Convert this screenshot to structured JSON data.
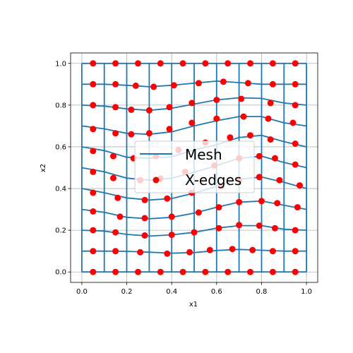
{
  "chart_data": {
    "type": "scatter",
    "title": "",
    "xlabel": "x1",
    "ylabel": "x2",
    "xlim": [
      -0.05,
      1.05
    ],
    "ylim": [
      -0.05,
      1.05
    ],
    "xticks": [
      "0.0",
      "0.2",
      "0.4",
      "0.6",
      "0.8",
      "1.0"
    ],
    "yticks": [
      "0.0",
      "0.2",
      "0.4",
      "0.6",
      "0.8",
      "1.0"
    ],
    "grid": true,
    "legend": {
      "location": "center",
      "entries": [
        "Mesh",
        "X-edges"
      ]
    },
    "colors": {
      "mesh": "#1f77b4",
      "edges": "#ff0000",
      "grid": "#b0b0b0"
    },
    "series": [
      {
        "name": "Mesh",
        "kind": "lines",
        "rows": [
          [
            [
              0.0,
              0.0
            ],
            [
              0.1,
              0.0
            ],
            [
              0.2,
              0.0
            ],
            [
              0.3,
              0.0
            ],
            [
              0.4,
              0.0
            ],
            [
              0.5,
              0.0
            ],
            [
              0.6,
              0.0
            ],
            [
              0.7,
              0.0
            ],
            [
              0.8,
              0.0
            ],
            [
              0.9,
              0.0
            ],
            [
              1.0,
              0.0
            ]
          ],
          [
            [
              0.0,
              0.1
            ],
            [
              0.1,
              0.1
            ],
            [
              0.2,
              0.099
            ],
            [
              0.3,
              0.095
            ],
            [
              0.4,
              0.09
            ],
            [
              0.5,
              0.093
            ],
            [
              0.6,
              0.103
            ],
            [
              0.7,
              0.108
            ],
            [
              0.8,
              0.104
            ],
            [
              0.9,
              0.1
            ],
            [
              1.0,
              0.1
            ]
          ],
          [
            [
              0.0,
              0.2
            ],
            [
              0.1,
              0.196
            ],
            [
              0.2,
              0.18
            ],
            [
              0.3,
              0.172
            ],
            [
              0.4,
              0.178
            ],
            [
              0.5,
              0.19
            ],
            [
              0.6,
              0.21
            ],
            [
              0.7,
              0.222
            ],
            [
              0.8,
              0.222
            ],
            [
              0.9,
              0.205
            ],
            [
              1.0,
              0.2
            ]
          ],
          [
            [
              0.0,
              0.3
            ],
            [
              0.1,
              0.286
            ],
            [
              0.2,
              0.262
            ],
            [
              0.3,
              0.255
            ],
            [
              0.4,
              0.262
            ],
            [
              0.5,
              0.282
            ],
            [
              0.6,
              0.31
            ],
            [
              0.7,
              0.335
            ],
            [
              0.8,
              0.34
            ],
            [
              0.9,
              0.32
            ],
            [
              1.0,
              0.3
            ]
          ],
          [
            [
              0.0,
              0.4
            ],
            [
              0.1,
              0.38
            ],
            [
              0.2,
              0.355
            ],
            [
              0.3,
              0.345
            ],
            [
              0.4,
              0.352
            ],
            [
              0.5,
              0.378
            ],
            [
              0.6,
              0.41
            ],
            [
              0.7,
              0.445
            ],
            [
              0.8,
              0.455
            ],
            [
              0.9,
              0.43
            ],
            [
              1.0,
              0.4
            ]
          ],
          [
            [
              0.0,
              0.5
            ],
            [
              0.1,
              0.48
            ],
            [
              0.2,
              0.45
            ],
            [
              0.3,
              0.44
            ],
            [
              0.4,
              0.45
            ],
            [
              0.5,
              0.478
            ],
            [
              0.6,
              0.51
            ],
            [
              0.7,
              0.545
            ],
            [
              0.8,
              0.555
            ],
            [
              0.9,
              0.525
            ],
            [
              1.0,
              0.5
            ]
          ],
          [
            [
              0.0,
              0.6
            ],
            [
              0.1,
              0.582
            ],
            [
              0.2,
              0.55
            ],
            [
              0.3,
              0.545
            ],
            [
              0.4,
              0.552
            ],
            [
              0.5,
              0.585
            ],
            [
              0.6,
              0.61
            ],
            [
              0.7,
              0.645
            ],
            [
              0.8,
              0.655
            ],
            [
              0.9,
              0.625
            ],
            [
              1.0,
              0.6
            ]
          ],
          [
            [
              0.0,
              0.7
            ],
            [
              0.1,
              0.686
            ],
            [
              0.2,
              0.665
            ],
            [
              0.3,
              0.66
            ],
            [
              0.4,
              0.672
            ],
            [
              0.5,
              0.7
            ],
            [
              0.6,
              0.725
            ],
            [
              0.7,
              0.745
            ],
            [
              0.8,
              0.745
            ],
            [
              0.9,
              0.715
            ],
            [
              1.0,
              0.7
            ]
          ],
          [
            [
              0.0,
              0.8
            ],
            [
              0.1,
              0.795
            ],
            [
              0.2,
              0.782
            ],
            [
              0.3,
              0.775
            ],
            [
              0.4,
              0.785
            ],
            [
              0.5,
              0.805
            ],
            [
              0.6,
              0.825
            ],
            [
              0.7,
              0.835
            ],
            [
              0.8,
              0.832
            ],
            [
              0.9,
              0.81
            ],
            [
              1.0,
              0.8
            ]
          ],
          [
            [
              0.0,
              0.9
            ],
            [
              0.1,
              0.9
            ],
            [
              0.2,
              0.895
            ],
            [
              0.3,
              0.888
            ],
            [
              0.4,
              0.895
            ],
            [
              0.5,
              0.905
            ],
            [
              0.6,
              0.915
            ],
            [
              0.7,
              0.908
            ],
            [
              0.8,
              0.9
            ],
            [
              0.9,
              0.9
            ],
            [
              1.0,
              0.9
            ]
          ],
          [
            [
              0.0,
              1.0
            ],
            [
              0.1,
              1.0
            ],
            [
              0.2,
              1.0
            ],
            [
              0.3,
              1.0
            ],
            [
              0.4,
              1.0
            ],
            [
              0.5,
              1.0
            ],
            [
              0.6,
              1.0
            ],
            [
              0.7,
              1.0
            ],
            [
              0.8,
              1.0
            ],
            [
              0.9,
              1.0
            ],
            [
              1.0,
              1.0
            ]
          ]
        ]
      },
      {
        "name": "X-edges",
        "kind": "points",
        "points": [
          [
            0.05,
            0.0
          ],
          [
            0.15,
            0.0
          ],
          [
            0.25,
            0.0
          ],
          [
            0.35,
            0.0
          ],
          [
            0.45,
            0.0
          ],
          [
            0.55,
            0.0
          ],
          [
            0.65,
            0.0
          ],
          [
            0.75,
            0.0
          ],
          [
            0.85,
            0.0
          ],
          [
            0.95,
            0.0
          ],
          [
            0.05,
            0.1
          ],
          [
            0.15,
            0.1
          ],
          [
            0.26,
            0.095
          ],
          [
            0.38,
            0.088
          ],
          [
            0.48,
            0.095
          ],
          [
            0.57,
            0.105
          ],
          [
            0.67,
            0.11
          ],
          [
            0.76,
            0.105
          ],
          [
            0.85,
            0.1
          ],
          [
            0.95,
            0.1
          ],
          [
            0.05,
            0.2
          ],
          [
            0.15,
            0.19
          ],
          [
            0.28,
            0.175
          ],
          [
            0.4,
            0.178
          ],
          [
            0.5,
            0.19
          ],
          [
            0.61,
            0.21
          ],
          [
            0.7,
            0.225
          ],
          [
            0.79,
            0.222
          ],
          [
            0.86,
            0.21
          ],
          [
            0.95,
            0.2
          ],
          [
            0.05,
            0.29
          ],
          [
            0.17,
            0.265
          ],
          [
            0.28,
            0.258
          ],
          [
            0.4,
            0.265
          ],
          [
            0.52,
            0.285
          ],
          [
            0.61,
            0.31
          ],
          [
            0.7,
            0.335
          ],
          [
            0.8,
            0.34
          ],
          [
            0.87,
            0.33
          ],
          [
            0.96,
            0.31
          ],
          [
            0.05,
            0.38
          ],
          [
            0.16,
            0.355
          ],
          [
            0.28,
            0.345
          ],
          [
            0.38,
            0.352
          ],
          [
            0.49,
            0.38
          ],
          [
            0.62,
            0.41
          ],
          [
            0.7,
            0.44
          ],
          [
            0.79,
            0.455
          ],
          [
            0.88,
            0.44
          ],
          [
            0.97,
            0.415
          ],
          [
            0.05,
            0.48
          ],
          [
            0.14,
            0.45
          ],
          [
            0.26,
            0.44
          ],
          [
            0.35,
            0.448
          ],
          [
            0.46,
            0.48
          ],
          [
            0.59,
            0.51
          ],
          [
            0.7,
            0.545
          ],
          [
            0.79,
            0.555
          ],
          [
            0.86,
            0.545
          ],
          [
            0.95,
            0.515
          ],
          [
            0.05,
            0.58
          ],
          [
            0.14,
            0.555
          ],
          [
            0.23,
            0.545
          ],
          [
            0.33,
            0.555
          ],
          [
            0.43,
            0.585
          ],
          [
            0.55,
            0.62
          ],
          [
            0.66,
            0.645
          ],
          [
            0.75,
            0.655
          ],
          [
            0.84,
            0.635
          ],
          [
            0.95,
            0.615
          ],
          [
            0.05,
            0.685
          ],
          [
            0.15,
            0.665
          ],
          [
            0.22,
            0.66
          ],
          [
            0.3,
            0.665
          ],
          [
            0.39,
            0.685
          ],
          [
            0.49,
            0.715
          ],
          [
            0.6,
            0.735
          ],
          [
            0.72,
            0.745
          ],
          [
            0.83,
            0.735
          ],
          [
            0.94,
            0.715
          ],
          [
            0.05,
            0.8
          ],
          [
            0.15,
            0.79
          ],
          [
            0.22,
            0.778
          ],
          [
            0.3,
            0.775
          ],
          [
            0.39,
            0.79
          ],
          [
            0.49,
            0.81
          ],
          [
            0.6,
            0.825
          ],
          [
            0.71,
            0.83
          ],
          [
            0.84,
            0.81
          ],
          [
            0.95,
            0.8
          ],
          [
            0.05,
            0.9
          ],
          [
            0.15,
            0.9
          ],
          [
            0.24,
            0.893
          ],
          [
            0.32,
            0.888
          ],
          [
            0.41,
            0.895
          ],
          [
            0.52,
            0.905
          ],
          [
            0.63,
            0.912
          ],
          [
            0.74,
            0.905
          ],
          [
            0.85,
            0.9
          ],
          [
            0.95,
            0.9
          ],
          [
            0.05,
            1.0
          ],
          [
            0.15,
            1.0
          ],
          [
            0.25,
            1.0
          ],
          [
            0.35,
            1.0
          ],
          [
            0.45,
            1.0
          ],
          [
            0.55,
            1.0
          ],
          [
            0.65,
            1.0
          ],
          [
            0.75,
            1.0
          ],
          [
            0.85,
            1.0
          ],
          [
            0.95,
            1.0
          ]
        ]
      }
    ]
  }
}
